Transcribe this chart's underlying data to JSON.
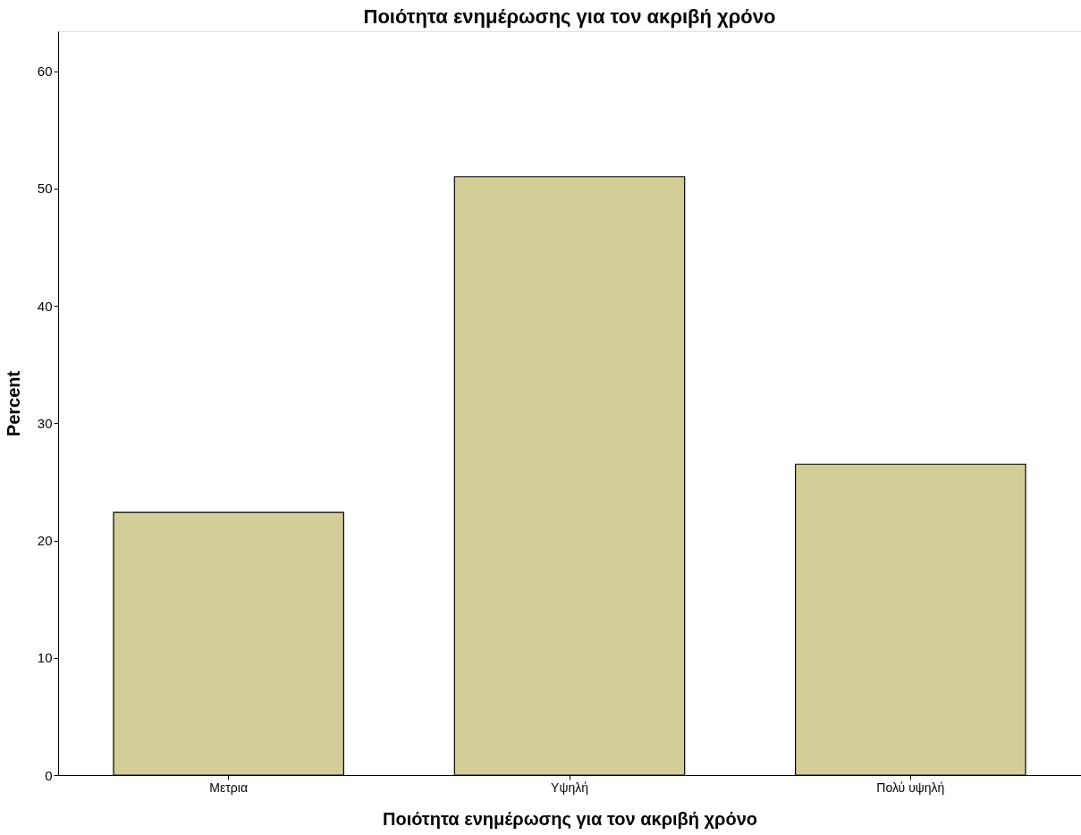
{
  "chart_data": {
    "type": "bar",
    "title": "Ποιότητα ενημέρωσης για τον ακριβή χρόνο",
    "xlabel": "Ποιότητα ενημέρωσης για τον ακριβή χρόνο",
    "ylabel": "Percent",
    "categories": [
      "Μετρια",
      "Υψηλή",
      "Πολύ υψηλή"
    ],
    "values": [
      22.4,
      51.0,
      26.5
    ],
    "color": "#d3ce97",
    "ylim": [
      0,
      63.4
    ],
    "yticks": [
      0,
      10,
      20,
      30,
      40,
      50,
      60
    ],
    "grid": false
  }
}
